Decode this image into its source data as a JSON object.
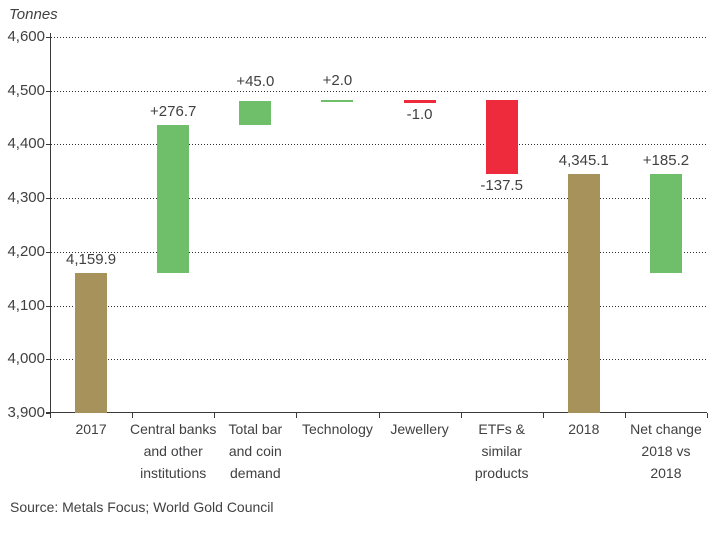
{
  "source_line": "Source: Metals Focus; World Gold Council",
  "colors": {
    "total": "#a7925c",
    "increase": "#6ebe6a",
    "decrease": "#ed2b3d",
    "text": "#414042",
    "axis": "#3a3a3b"
  },
  "chart_data": {
    "type": "bar",
    "subtype": "waterfall",
    "unit_label": "Tonnes",
    "ylim": [
      3900,
      4600
    ],
    "ytick_interval": 100,
    "yticks": [
      4600,
      4500,
      4400,
      4300,
      4200,
      4100,
      4000,
      3900
    ],
    "ytick_labels": [
      "4,600",
      "4,500",
      "4,400",
      "4,300",
      "4,200",
      "4,100",
      "4,000",
      "3,900"
    ],
    "grid": "dotted horizontal gridlines, left and bottom solid axes",
    "legend": "none",
    "bars": [
      {
        "category": "2017",
        "category_lines": [
          "2017"
        ],
        "from": 3900,
        "to": 4159.9,
        "value": 4159.9,
        "value_label": "4,159.9",
        "label_position": "above",
        "role": "total"
      },
      {
        "category": "Central banks and other institutions",
        "category_lines": [
          "Central banks",
          "and other",
          "institutions"
        ],
        "from": 4159.9,
        "to": 4436.6,
        "value": 276.7,
        "value_label": "+276.7",
        "label_position": "above",
        "role": "increase"
      },
      {
        "category": "Total bar and coin demand",
        "category_lines": [
          "Total bar",
          "and coin",
          "demand"
        ],
        "from": 4436.6,
        "to": 4481.6,
        "value": 45.0,
        "value_label": "+45.0",
        "label_position": "above",
        "role": "increase"
      },
      {
        "category": "Technology",
        "category_lines": [
          "Technology"
        ],
        "from": 4481.6,
        "to": 4483.6,
        "value": 2.0,
        "value_label": "+2.0",
        "label_position": "above",
        "role": "increase"
      },
      {
        "category": "Jewellery",
        "category_lines": [
          "Jewellery"
        ],
        "from": 4483.6,
        "to": 4482.6,
        "value": -1.0,
        "value_label": "-1.0",
        "label_position": "below",
        "role": "decrease"
      },
      {
        "category": "ETFs & similar products",
        "category_lines": [
          "ETFs &",
          "similar",
          "products"
        ],
        "from": 4482.6,
        "to": 4345.1,
        "value": -137.5,
        "value_label": "-137.5",
        "label_position": "below",
        "role": "decrease"
      },
      {
        "category": "2018",
        "category_lines": [
          "2018"
        ],
        "from": 3900,
        "to": 4345.1,
        "value": 4345.1,
        "value_label": "4,345.1",
        "label_position": "above",
        "role": "total"
      },
      {
        "category": "Net change 2018 vs 2018",
        "category_lines": [
          "Net change",
          "2018 vs",
          "2018"
        ],
        "from": 4159.9,
        "to": 4345.1,
        "value": 185.2,
        "value_label": "+185.2",
        "label_position": "above",
        "role": "increase"
      }
    ]
  }
}
